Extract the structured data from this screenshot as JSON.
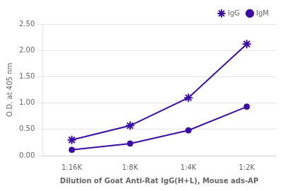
{
  "chart_data": {
    "type": "line",
    "xlabel": "Dilution of Goat Anti-Rat IgG(H+L), Mouse ads-AP",
    "ylabel": "O.D. at 405 nm",
    "categories": [
      "1:16K",
      "1:8K",
      "1:4K",
      "1:2K"
    ],
    "series": [
      {
        "name": "IgG",
        "color": "#3B0CA8",
        "marker": "star",
        "values": [
          0.3,
          0.57,
          1.1,
          2.12
        ]
      },
      {
        "name": "IgM",
        "color": "#3B0CA8",
        "marker": "circle",
        "values": [
          0.11,
          0.23,
          0.48,
          0.93
        ]
      }
    ],
    "ylim": [
      0.0,
      2.5
    ],
    "yticks": [
      {
        "value": 0,
        "label": "0.00"
      },
      {
        "value": 0.5,
        "label": "0.50"
      },
      {
        "value": 1,
        "label": "1.00"
      },
      {
        "value": 1.5,
        "label": "1.50"
      },
      {
        "value": 2,
        "label": "2.00"
      },
      {
        "value": 2.5,
        "label": "2.50"
      }
    ],
    "grid": "y",
    "legend": "upper right"
  }
}
